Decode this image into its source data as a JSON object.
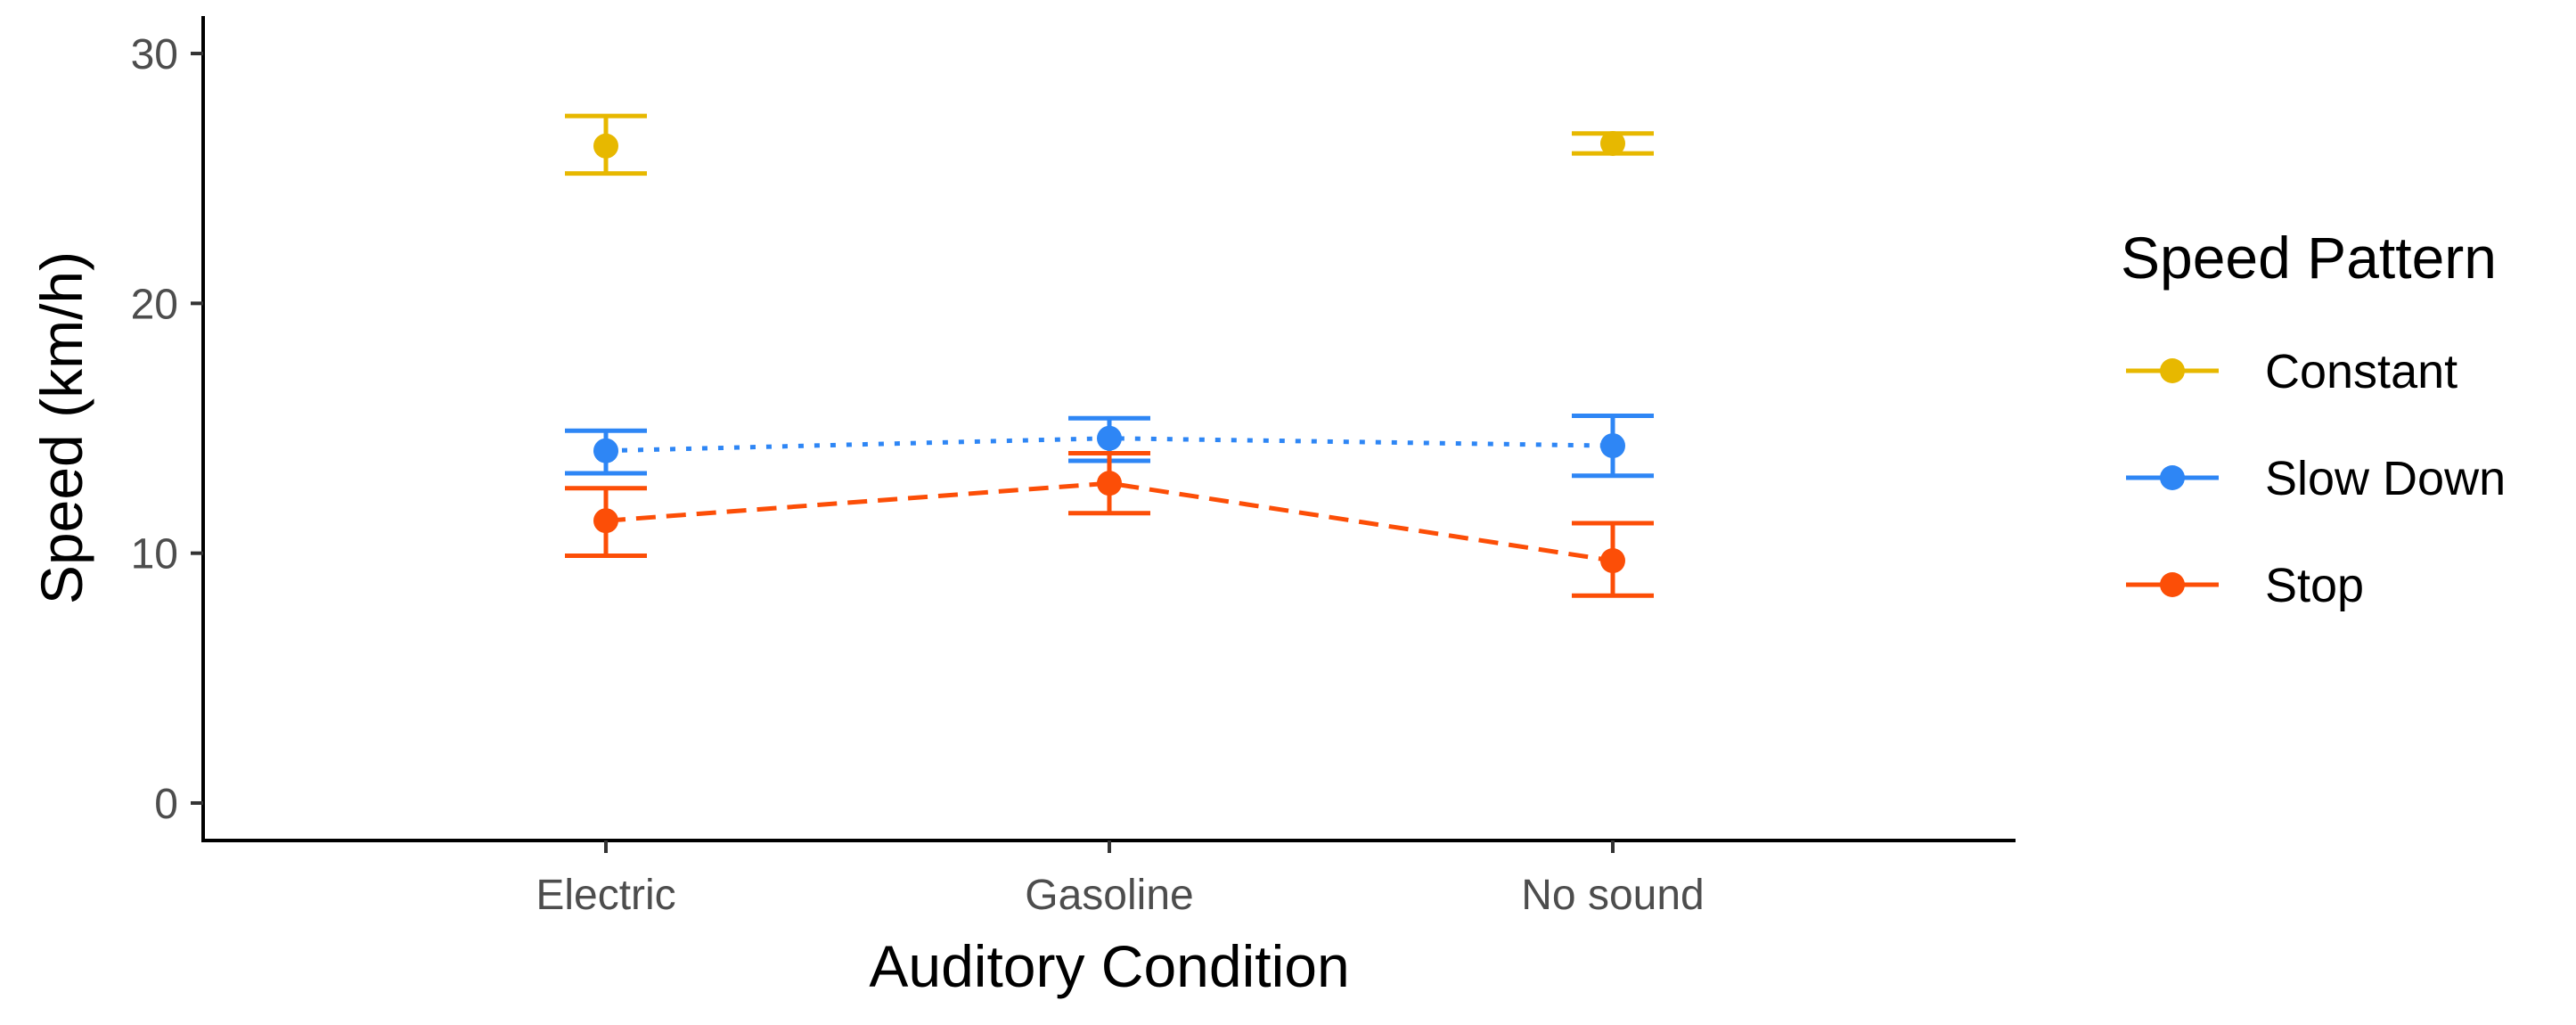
{
  "chart_data": {
    "type": "scatter",
    "title": "",
    "xlabel": "Auditory Condition",
    "ylabel": "Speed (km/h)",
    "categories": [
      "Electric",
      "Gasoline",
      "No sound"
    ],
    "ylim": [
      -1.5,
      31.5
    ],
    "yticks": [
      0,
      10,
      20,
      30
    ],
    "grid": false,
    "legend": {
      "title": "Speed Pattern",
      "position": "right"
    },
    "series": [
      {
        "name": "Constant",
        "color": "#E7B800",
        "line": "none",
        "points": [
          {
            "category": "Electric",
            "mean": 26.3,
            "low": 25.2,
            "high": 27.5
          },
          {
            "category": "No sound",
            "mean": 26.4,
            "low": 26.0,
            "high": 26.8
          }
        ]
      },
      {
        "name": "Slow Down",
        "color": "#2E86F5",
        "line": "dotted",
        "points": [
          {
            "category": "Electric",
            "mean": 14.1,
            "low": 13.2,
            "high": 14.9
          },
          {
            "category": "Gasoline",
            "mean": 14.6,
            "low": 13.7,
            "high": 15.4
          },
          {
            "category": "No sound",
            "mean": 14.3,
            "low": 13.1,
            "high": 15.5
          }
        ]
      },
      {
        "name": "Stop",
        "color": "#FC4E07",
        "line": "dashed",
        "points": [
          {
            "category": "Electric",
            "mean": 11.3,
            "low": 9.9,
            "high": 12.6
          },
          {
            "category": "Gasoline",
            "mean": 12.8,
            "low": 11.6,
            "high": 14.0
          },
          {
            "category": "No sound",
            "mean": 9.7,
            "low": 8.3,
            "high": 11.2
          }
        ]
      }
    ]
  }
}
